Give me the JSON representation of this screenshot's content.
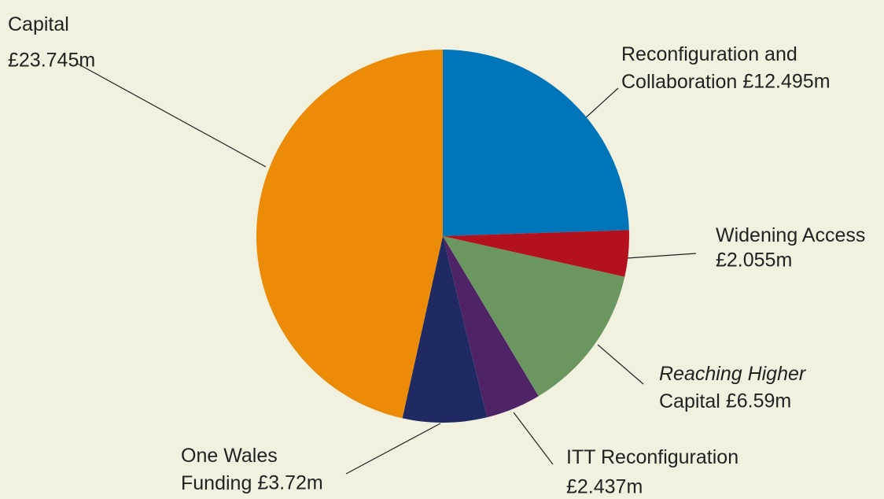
{
  "chart_data": {
    "type": "pie",
    "categories": [
      "Reconfiguration and Collaboration",
      "Widening Access",
      "Reaching Higher Capital",
      "ITT Reconfiguration",
      "One Wales Funding",
      "Capital"
    ],
    "values": [
      12.495,
      2.055,
      6.59,
      2.437,
      3.72,
      23.745
    ],
    "value_labels": [
      "£12.495m",
      "£2.055m",
      "£6.59m",
      "£2.437m",
      "£3.72m",
      "£23.745m"
    ],
    "colors": [
      "#0075ba",
      "#b3111d",
      "#6b9660",
      "#4e2467",
      "#1f2962",
      "#eb8b08"
    ]
  }
}
